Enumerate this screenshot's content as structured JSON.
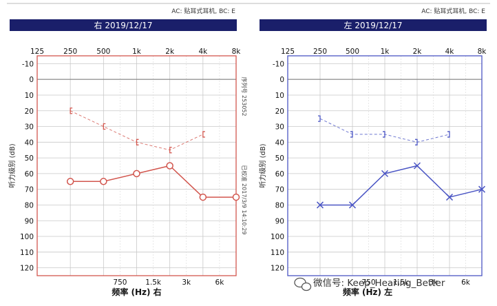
{
  "chart_data": [
    {
      "type": "line",
      "title": "右 2019/12/17",
      "header_note": "AC: 贴耳式耳机, BC: E",
      "ylabel": "听力级别 (dB)",
      "xlabel": "频率 (Hz) 右",
      "ylim": [
        -15,
        125
      ],
      "y_reversed": true,
      "yticks": [
        -10,
        0,
        10,
        20,
        30,
        40,
        50,
        60,
        70,
        80,
        90,
        100,
        110,
        120
      ],
      "x_top_ticks": [
        "125",
        "250",
        "500",
        "1k",
        "2k",
        "4k",
        "8k"
      ],
      "x_bottom_ticks": [
        "750",
        "1.5k",
        "3k",
        "6k"
      ],
      "side_notes": [
        "序列号 253052",
        "已校准 2017/3/9 14:10:29"
      ],
      "color": "#d2564e",
      "series": [
        {
          "name": "",
          "marker": "bracket-left",
          "line": "dashed",
          "x": [
            "250",
            "500",
            "1k",
            "2k",
            "4k"
          ],
          "values": [
            20,
            30,
            40,
            45,
            35
          ]
        },
        {
          "name": "",
          "marker": "circle",
          "line": "solid",
          "x": [
            "250",
            "500",
            "1k",
            "2k",
            "4k",
            "8k"
          ],
          "values": [
            65,
            65,
            60,
            55,
            75,
            75
          ]
        }
      ]
    },
    {
      "type": "line",
      "title": "左 2019/12/17",
      "header_note": "AC: 贴耳式耳机, BC: E",
      "ylabel": "听力级别 (dB)",
      "xlabel": "频率 (Hz) 左",
      "ylim": [
        -15,
        125
      ],
      "y_reversed": true,
      "yticks": [
        -10,
        0,
        10,
        20,
        30,
        40,
        50,
        60,
        70,
        80,
        90,
        100,
        110,
        120
      ],
      "x_top_ticks": [
        "125",
        "250",
        "500",
        "1k",
        "2k",
        "4k",
        "8k"
      ],
      "x_bottom_ticks": [
        "750",
        "1.5k",
        "3k",
        "6k"
      ],
      "side_notes": [],
      "color": "#4a55c4",
      "series": [
        {
          "name": "",
          "marker": "bracket-right",
          "line": "dashed",
          "x": [
            "250",
            "500",
            "1k",
            "2k",
            "4k"
          ],
          "values": [
            25,
            35,
            35,
            40,
            35
          ]
        },
        {
          "name": "",
          "marker": "cross",
          "line": "solid",
          "x": [
            "250",
            "500",
            "1k",
            "2k",
            "4k",
            "8k"
          ],
          "values": [
            80,
            80,
            60,
            55,
            75,
            70
          ]
        }
      ]
    }
  ],
  "watermark": {
    "text": "微信号: Keep_Hearing_Better",
    "icon": "wechat-icon"
  },
  "colors": {
    "header_bar": "#1a1f6a"
  }
}
